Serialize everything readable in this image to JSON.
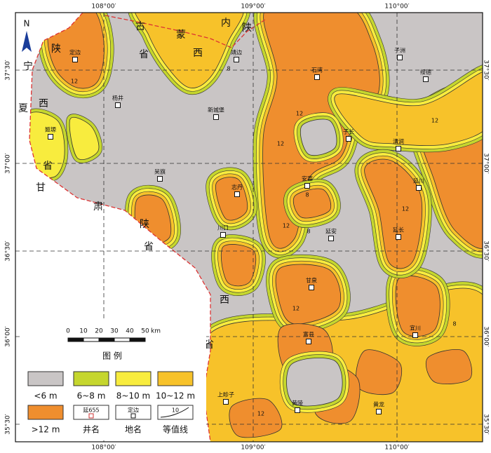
{
  "map": {
    "north": "N",
    "lon_labels": [
      "108°00′",
      "109°00′",
      "110°00′"
    ],
    "lat_labels": [
      "37°30′",
      "37°00′",
      "36°30′",
      "36°00′",
      "35°30′"
    ],
    "region_labels": [
      "古",
      "省",
      "蒙",
      "西",
      "内",
      "陕",
      "陕",
      "宁",
      "西",
      "夏",
      "省",
      "甘",
      "肃",
      "陕",
      "省",
      "西",
      "省"
    ],
    "places": [
      "定边",
      "靖边",
      "杨井",
      "姬塬",
      "新城堡",
      "吴旗",
      "志丹",
      "川口",
      "安塞",
      "子长",
      "清涧",
      "延川",
      "延安",
      "延长",
      "甘泉",
      "富县",
      "宜川",
      "黄陵",
      "上畛子",
      "黄龙",
      "石湾",
      "子洲",
      "绥德"
    ],
    "contour_labels": [
      "12",
      "12",
      "12",
      "8",
      "8",
      "12",
      "12",
      "8",
      "12",
      "8",
      "12",
      "12"
    ],
    "scale": {
      "ticks": [
        0,
        10,
        20,
        30,
        40,
        50
      ],
      "unit": "km"
    },
    "legend": {
      "title": "图 例",
      "items": [
        {
          "label": "<6 m",
          "color": "#c9c5c5"
        },
        {
          "label": "6~8 m",
          "color": "#c5d62e"
        },
        {
          "label": "8~10 m",
          "color": "#f8ec3e"
        },
        {
          "label": "10~12 m",
          "color": "#f7c22a"
        },
        {
          "label": ">12 m",
          "color": "#ef8e2e"
        }
      ],
      "symbols": [
        {
          "label": "井名",
          "sample": "延655"
        },
        {
          "label": "地名",
          "sample": "定边"
        },
        {
          "label": "等值线",
          "sample": "10"
        }
      ]
    }
  }
}
